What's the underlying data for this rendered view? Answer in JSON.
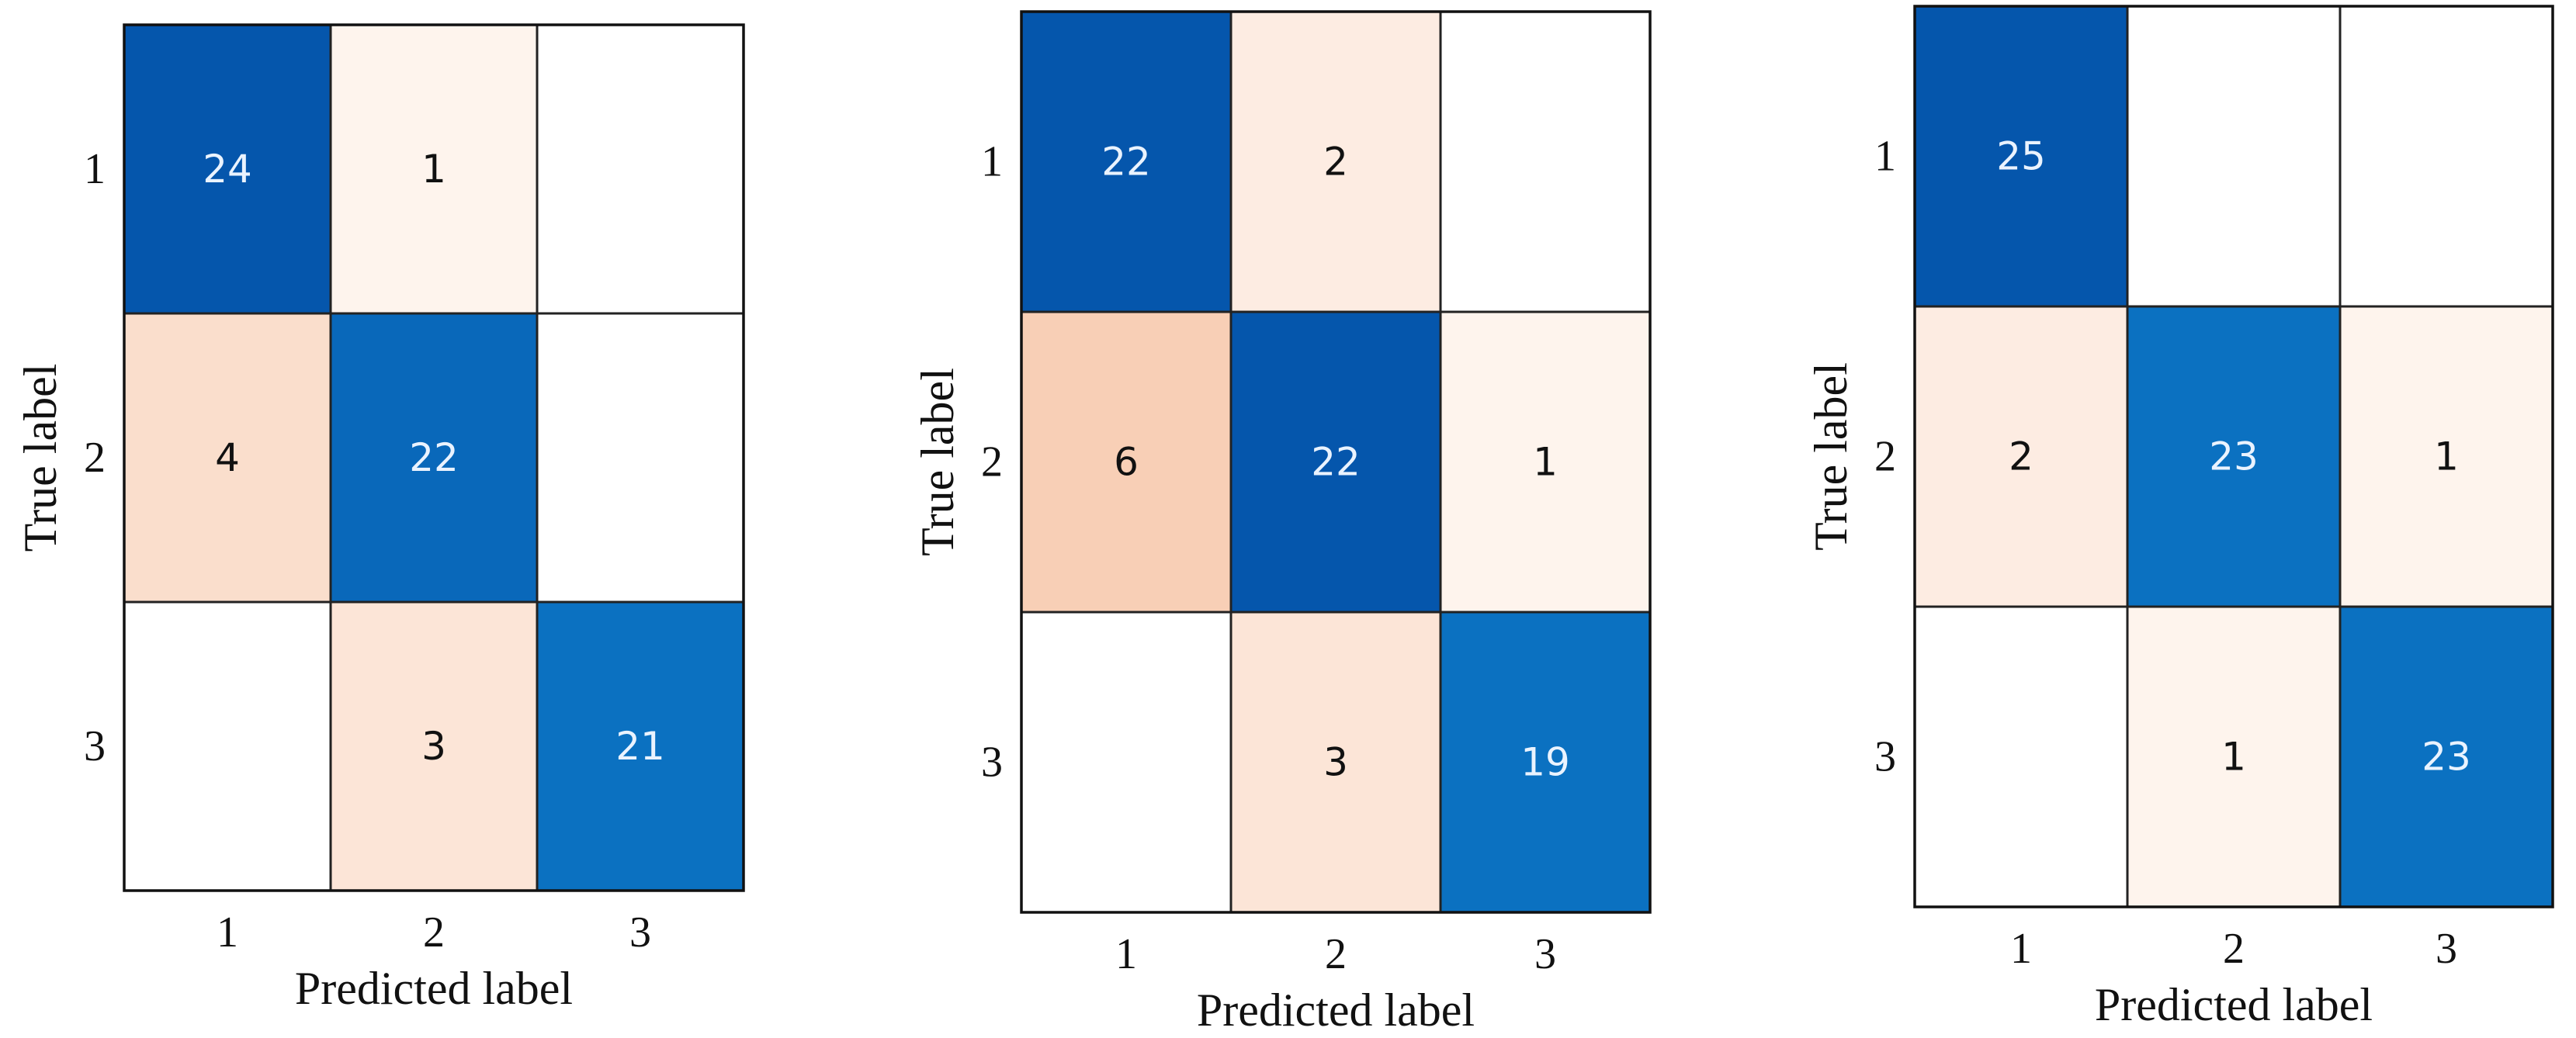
{
  "chart_data": [
    {
      "type": "heatmap",
      "xlabel": "Predicted label",
      "ylabel": "True label",
      "x_ticks": [
        "1",
        "2",
        "3"
      ],
      "y_ticks": [
        "1",
        "2",
        "3"
      ],
      "matrix": [
        [
          24,
          1,
          0
        ],
        [
          4,
          22,
          0
        ],
        [
          0,
          3,
          21
        ]
      ]
    },
    {
      "type": "heatmap",
      "xlabel": "Predicted label",
      "ylabel": "True label",
      "x_ticks": [
        "1",
        "2",
        "3"
      ],
      "y_ticks": [
        "1",
        "2",
        "3"
      ],
      "matrix": [
        [
          22,
          2,
          0
        ],
        [
          6,
          22,
          1
        ],
        [
          0,
          3,
          19
        ]
      ]
    },
    {
      "type": "heatmap",
      "xlabel": "Predicted label",
      "ylabel": "True label",
      "x_ticks": [
        "1",
        "2",
        "3"
      ],
      "y_ticks": [
        "1",
        "2",
        "3"
      ],
      "matrix": [
        [
          25,
          0,
          0
        ],
        [
          2,
          23,
          1
        ],
        [
          0,
          1,
          23
        ]
      ]
    }
  ],
  "colors": {
    "diagonal_dark": "#0556ac",
    "diagonal_light": "#0b71c1",
    "offdiag_max": "#f8cfb6",
    "empty": "#ffffff",
    "text_on_dark": "#eaf3ff",
    "text_on_light": "#111111"
  }
}
